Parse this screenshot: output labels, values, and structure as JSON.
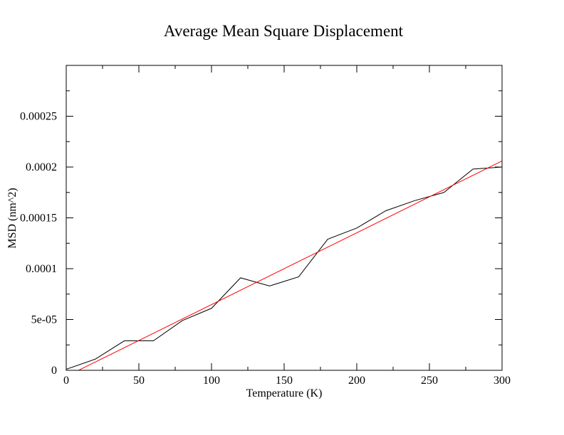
{
  "chart_data": {
    "type": "line",
    "title": "Average Mean Square Displacement",
    "xlabel": "Temperature (K)",
    "ylabel": "MSD (nm^2)",
    "xlim": [
      0,
      300
    ],
    "ylim": [
      0,
      0.0003
    ],
    "x_ticks": [
      0,
      50,
      100,
      150,
      200,
      250,
      300
    ],
    "x_tick_labels": [
      "0",
      "50",
      "100",
      "150",
      "200",
      "250",
      "300"
    ],
    "y_ticks": [
      0,
      5e-05,
      0.0001,
      0.00015,
      0.0002,
      0.00025
    ],
    "y_tick_labels": [
      "0",
      "5e-05",
      "0.0001",
      "0.00015",
      "0.0002",
      "0.00025"
    ],
    "grid": false,
    "series": [
      {
        "color": "#000000",
        "x": [
          0,
          20,
          40,
          60,
          80,
          100,
          120,
          140,
          160,
          180,
          200,
          220,
          240,
          260,
          280,
          300
        ],
        "y": [
          1e-06,
          1.1e-05,
          2.9e-05,
          2.9e-05,
          4.9e-05,
          6.1e-05,
          9.1e-05,
          8.3e-05,
          9.2e-05,
          0.000129,
          0.00014,
          0.000157,
          0.000167,
          0.000175,
          0.000198,
          0.0002
        ]
      },
      {
        "color": "#ff0000",
        "x": [
          0,
          300
        ],
        "y": [
          -6e-06,
          0.000206
        ]
      }
    ]
  }
}
